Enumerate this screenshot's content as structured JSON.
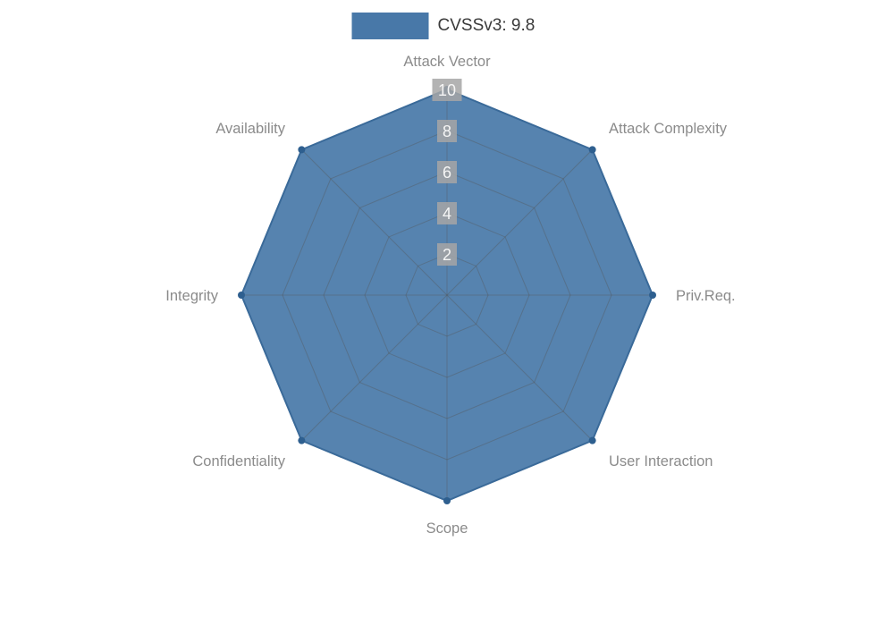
{
  "legend": {
    "label": "CVSSv3: 9.8",
    "color": "#4878a8"
  },
  "chart_data": {
    "type": "radar",
    "categories": [
      "Attack Vector",
      "Attack Complexity",
      "Priv.Req.",
      "User Interaction",
      "Scope",
      "Confidentiality",
      "Integrity",
      "Availability"
    ],
    "series": [
      {
        "name": "CVSSv3: 9.8",
        "values": [
          10,
          10,
          10,
          10,
          10,
          10,
          10,
          10
        ]
      }
    ],
    "title": "CVSSv3: 9.8",
    "rmin": 0,
    "rmax": 10,
    "ticks": [
      2,
      4,
      6,
      8,
      10
    ],
    "grid": true,
    "legend_position": "top",
    "colors": {
      "fill": "#4878a8",
      "fill_opacity": 0.92,
      "stroke": "#3a6a99",
      "point": "#2e5f8f",
      "grid": "#555555",
      "axis_label": "#8b8b8b",
      "tick_text": "#f5f5f5",
      "tick_backdrop": "#a6a6a6",
      "background": "#ffffff"
    }
  }
}
